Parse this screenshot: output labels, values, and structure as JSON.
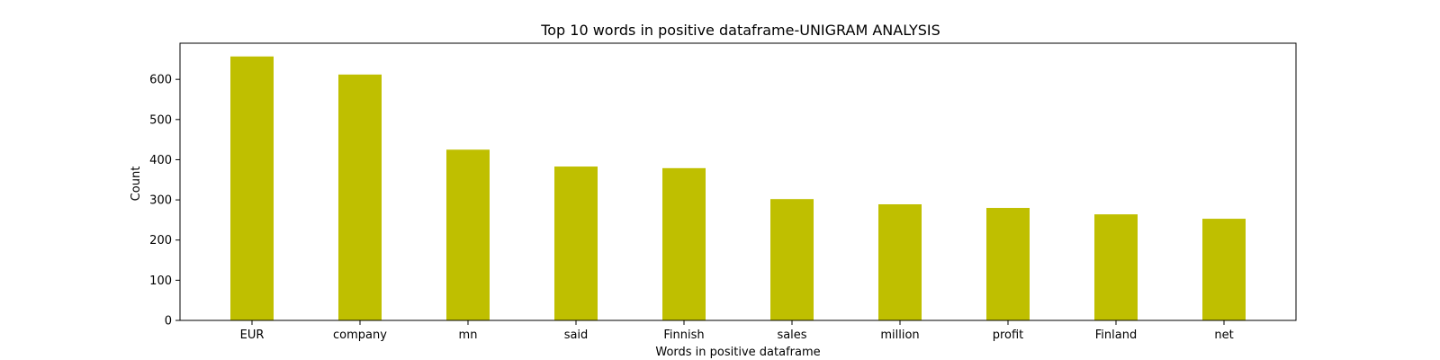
{
  "chart_data": {
    "type": "bar",
    "title": "Top 10 words in positive dataframe-UNIGRAM ANALYSIS",
    "xlabel": "Words in positive dataframe",
    "ylabel": "Count",
    "categories": [
      "EUR",
      "company",
      "mn",
      "said",
      "Finnish",
      "sales",
      "million",
      "profit",
      "Finland",
      "net"
    ],
    "values": [
      657,
      612,
      425,
      383,
      379,
      302,
      289,
      280,
      264,
      253
    ],
    "ylim": [
      0,
      690
    ],
    "yticks": [
      0,
      100,
      200,
      300,
      400,
      500,
      600
    ],
    "bar_color": "#bfbf00",
    "grid": false,
    "legend": "none"
  }
}
